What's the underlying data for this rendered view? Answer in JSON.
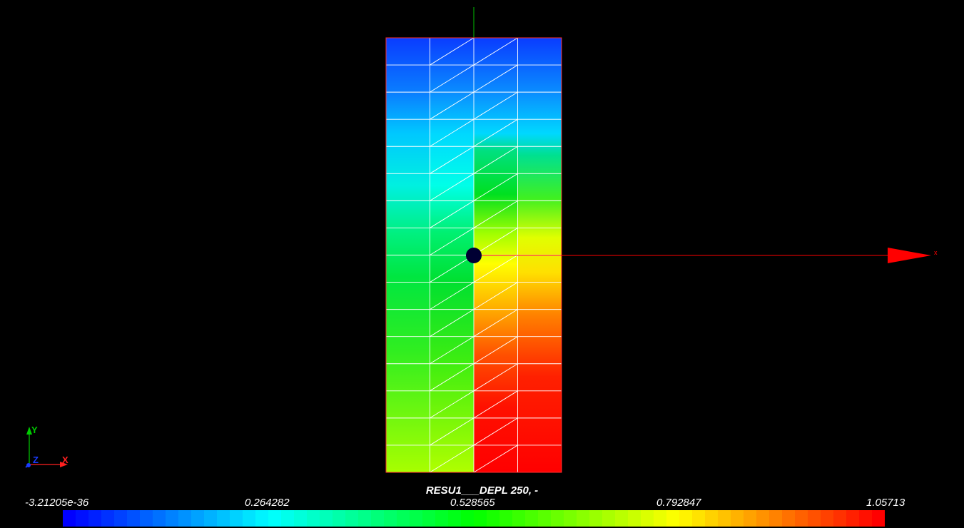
{
  "scalar_bar": {
    "title": "RESU1___DEPL 250, -",
    "tick_labels": [
      "-3.21205e-36",
      "0.264282",
      "0.528565",
      "0.792847",
      "1.05713"
    ],
    "num_colors": 64,
    "colormap": [
      "#0000ff",
      "#00ffff",
      "#00ff00",
      "#ffff00",
      "#ff0000"
    ]
  },
  "orientation_axes": {
    "y_label": "Y",
    "z_label": "Z",
    "x_label": "X",
    "y_color": "#00cc00",
    "z_color": "#1a3cff",
    "x_color": "#ff2020"
  },
  "scene_axis": {
    "x_label": "x",
    "x_color": "#ff0000",
    "y_color": "#00c000"
  },
  "mesh": {
    "columns": 4,
    "rows": 16,
    "edge_color": "#ffffff",
    "boundary_color": "#ff3030",
    "origin_marker_color": "#000033"
  }
}
